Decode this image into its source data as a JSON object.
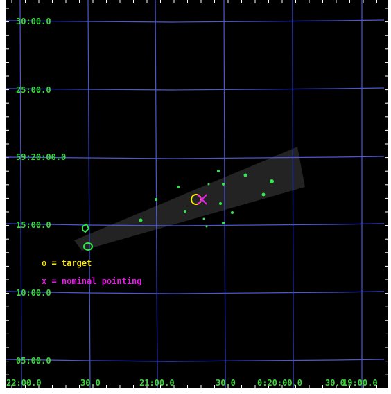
{
  "colors": {
    "grid": "#4b57d6",
    "label": "#38d838",
    "target": "#ffee00",
    "pointing": "#e61de6",
    "exposure": "#232323",
    "source": "#33e64d",
    "frame": "#000000"
  },
  "grid": {
    "dec_labels": [
      "30:00.0",
      "25:00.0",
      "59:20:00.0",
      "15:00.0",
      "10:00.0",
      "05:00.0"
    ],
    "ra_labels": [
      "22:00.0",
      "30.0",
      "21:00.0",
      "30.0",
      "0:20:00.0",
      "30.0",
      "19:00.0"
    ]
  },
  "legend": {
    "target": "o = target",
    "pointing": "x = nominal pointing"
  }
}
